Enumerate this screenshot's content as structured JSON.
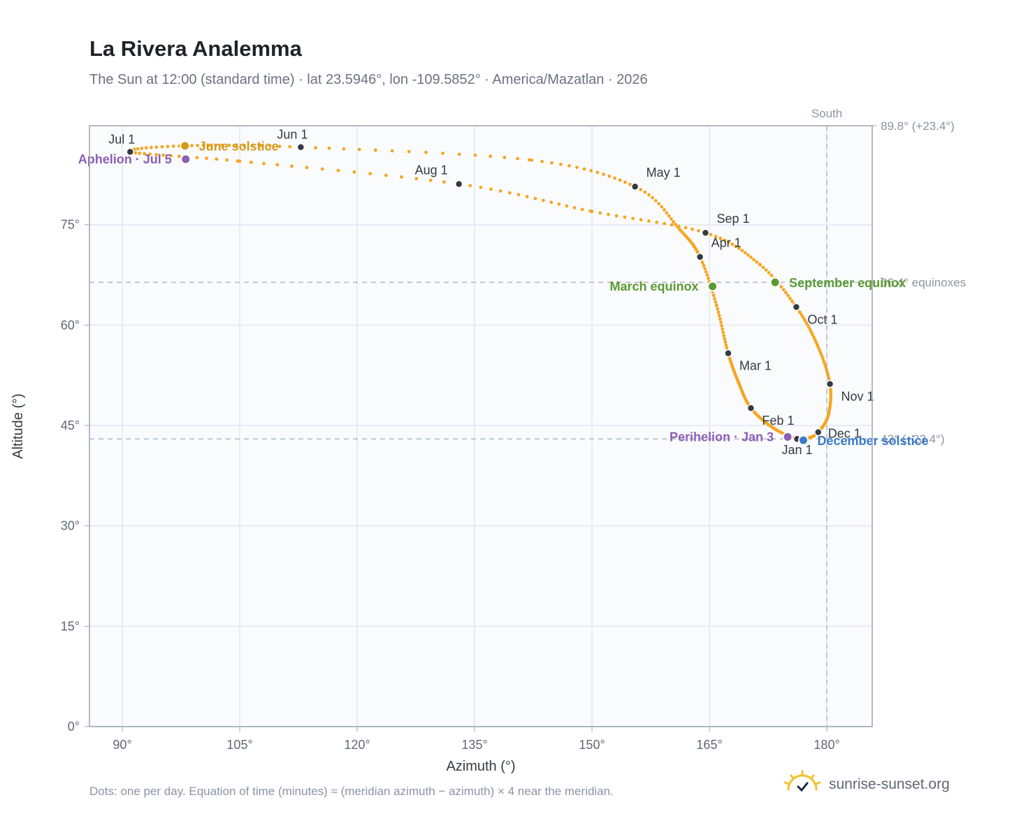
{
  "header": {
    "title": "La Rivera Analemma",
    "subtitle": "The Sun at 12:00 (standard time) · lat 23.5946°, lon -109.5852° · America/Mazatlan · 2026"
  },
  "footer": {
    "note": "Dots: one per day. Equation of time (minutes) ≈ (meridian azimuth − azimuth) × 4 near the meridian.",
    "brand": "sunrise-sunset.org",
    "brand_icon": "sunrise-logo-icon"
  },
  "colors": {
    "curve": "#f5a623",
    "month_marker": "#343a40",
    "equinox": "#5a9a32",
    "december_solstice": "#3a7bc8",
    "june_solstice": "#d49a1a",
    "perihelion_aphelion": "#8a5fb5",
    "reference_line": "#aeb8c2",
    "plot_background": "#fafbfd"
  },
  "chart_data": {
    "type": "scatter",
    "xlabel": "Azimuth (°)",
    "ylabel": "Altitude (°)",
    "xlim": [
      85.8,
      185.8
    ],
    "ylim": [
      0,
      89.8
    ],
    "x_ticks": [
      90,
      105,
      120,
      135,
      150,
      165,
      180
    ],
    "x_tick_labels": [
      "90°",
      "105°",
      "120°",
      "135°",
      "150°",
      "165°",
      "180°"
    ],
    "y_ticks": [
      0,
      15,
      30,
      45,
      60,
      75
    ],
    "y_tick_labels": [
      "0°",
      "15°",
      "30°",
      "45°",
      "60°",
      "75°"
    ],
    "grid": true,
    "reference_lines": {
      "south": {
        "azimuth": 180,
        "label": "South"
      },
      "max_altitude": {
        "altitude": 89.8,
        "label": "89.8° (+23.4°)"
      },
      "equinox_altitude": {
        "altitude": 66.4,
        "label": "66.4° equinoxes"
      },
      "min_altitude": {
        "altitude": 43.0,
        "label": "43° (−23.4°)"
      }
    },
    "series": [
      {
        "points_per": "day",
        "anchors": [
          {
            "date": "Jan 1",
            "az": 176.2,
            "alt": 43.0
          },
          {
            "date": "Jan 16",
            "az": 173.2,
            "alt": 44.6
          },
          {
            "date": "Feb 1",
            "az": 170.3,
            "alt": 47.6
          },
          {
            "date": "Feb 16",
            "az": 168.7,
            "alt": 51.5
          },
          {
            "date": "Mar 1",
            "az": 167.4,
            "alt": 55.8
          },
          {
            "date": "Mar 20",
            "az": 165.9,
            "alt": 63.0
          },
          {
            "date": "Apr 1",
            "az": 163.8,
            "alt": 70.2
          },
          {
            "date": "Apr 16",
            "az": 161.2,
            "alt": 74.3
          },
          {
            "date": "May 1",
            "az": 155.5,
            "alt": 80.7
          },
          {
            "date": "May 16",
            "az": 142.0,
            "alt": 84.7
          },
          {
            "date": "Jun 1",
            "az": 112.8,
            "alt": 86.6
          },
          {
            "date": "Jun 16",
            "az": 98.0,
            "alt": 86.8
          },
          {
            "date": "Jul 1",
            "az": 91.0,
            "alt": 85.9
          },
          {
            "date": "Jul 16",
            "az": 105.0,
            "alt": 84.5
          },
          {
            "date": "Aug 1",
            "az": 133.0,
            "alt": 81.1
          },
          {
            "date": "Aug 16",
            "az": 150.0,
            "alt": 77.0
          },
          {
            "date": "Sep 1",
            "az": 164.5,
            "alt": 73.8
          },
          {
            "date": "Sep 16",
            "az": 171.5,
            "alt": 69.0
          },
          {
            "date": "Oct 1",
            "az": 176.1,
            "alt": 62.7
          },
          {
            "date": "Oct 16",
            "az": 178.8,
            "alt": 57.0
          },
          {
            "date": "Nov 1",
            "az": 180.4,
            "alt": 51.2
          },
          {
            "date": "Nov 16",
            "az": 180.2,
            "alt": 46.6
          },
          {
            "date": "Dec 1",
            "az": 178.9,
            "alt": 44.0
          },
          {
            "date": "Dec 16",
            "az": 177.6,
            "alt": 43.1
          },
          {
            "date": "Dec 31",
            "az": 176.3,
            "alt": 43.0
          }
        ]
      }
    ],
    "month_markers": [
      {
        "label": "Jan 1",
        "az": 176.2,
        "alt": 43.0,
        "anchor": "below"
      },
      {
        "label": "Feb 1",
        "az": 170.3,
        "alt": 47.6,
        "anchor": "below-right"
      },
      {
        "label": "Mar 1",
        "az": 167.4,
        "alt": 55.8,
        "anchor": "below-right"
      },
      {
        "label": "Apr 1",
        "az": 163.8,
        "alt": 70.2,
        "anchor": "above-right"
      },
      {
        "label": "May 1",
        "az": 155.5,
        "alt": 80.7,
        "anchor": "above-right"
      },
      {
        "label": "Jun 1",
        "az": 112.8,
        "alt": 86.6,
        "anchor": "above"
      },
      {
        "label": "Jul 1",
        "az": 91.0,
        "alt": 85.9,
        "anchor": "above"
      },
      {
        "label": "Aug 1",
        "az": 133.0,
        "alt": 81.1,
        "anchor": "above-left"
      },
      {
        "label": "Sep 1",
        "az": 164.5,
        "alt": 73.8,
        "anchor": "above-right"
      },
      {
        "label": "Oct 1",
        "az": 176.1,
        "alt": 62.7,
        "anchor": "below-right"
      },
      {
        "label": "Nov 1",
        "az": 180.4,
        "alt": 51.2,
        "anchor": "below-right"
      },
      {
        "label": "Dec 1",
        "az": 178.9,
        "alt": 44.0,
        "anchor": "right"
      }
    ],
    "events": [
      {
        "label": "March equinox",
        "az": 165.4,
        "alt": 65.8,
        "color_key": "equinox",
        "anchor": "left"
      },
      {
        "label": "September equinox",
        "az": 173.4,
        "alt": 66.4,
        "color_key": "equinox",
        "anchor": "right"
      },
      {
        "label": "December solstice",
        "az": 177.0,
        "alt": 42.8,
        "color_key": "december_solstice",
        "anchor": "right"
      },
      {
        "label": "June solstice",
        "az": 98.0,
        "alt": 86.8,
        "color_key": "june_solstice",
        "anchor": "right"
      },
      {
        "label": "Perihelion · Jan 3",
        "az": 175.0,
        "alt": 43.3,
        "color_key": "perihelion_aphelion",
        "anchor": "left"
      },
      {
        "label": "Aphelion · Jul 5",
        "az": 98.1,
        "alt": 84.8,
        "color_key": "perihelion_aphelion",
        "anchor": "left"
      }
    ]
  }
}
